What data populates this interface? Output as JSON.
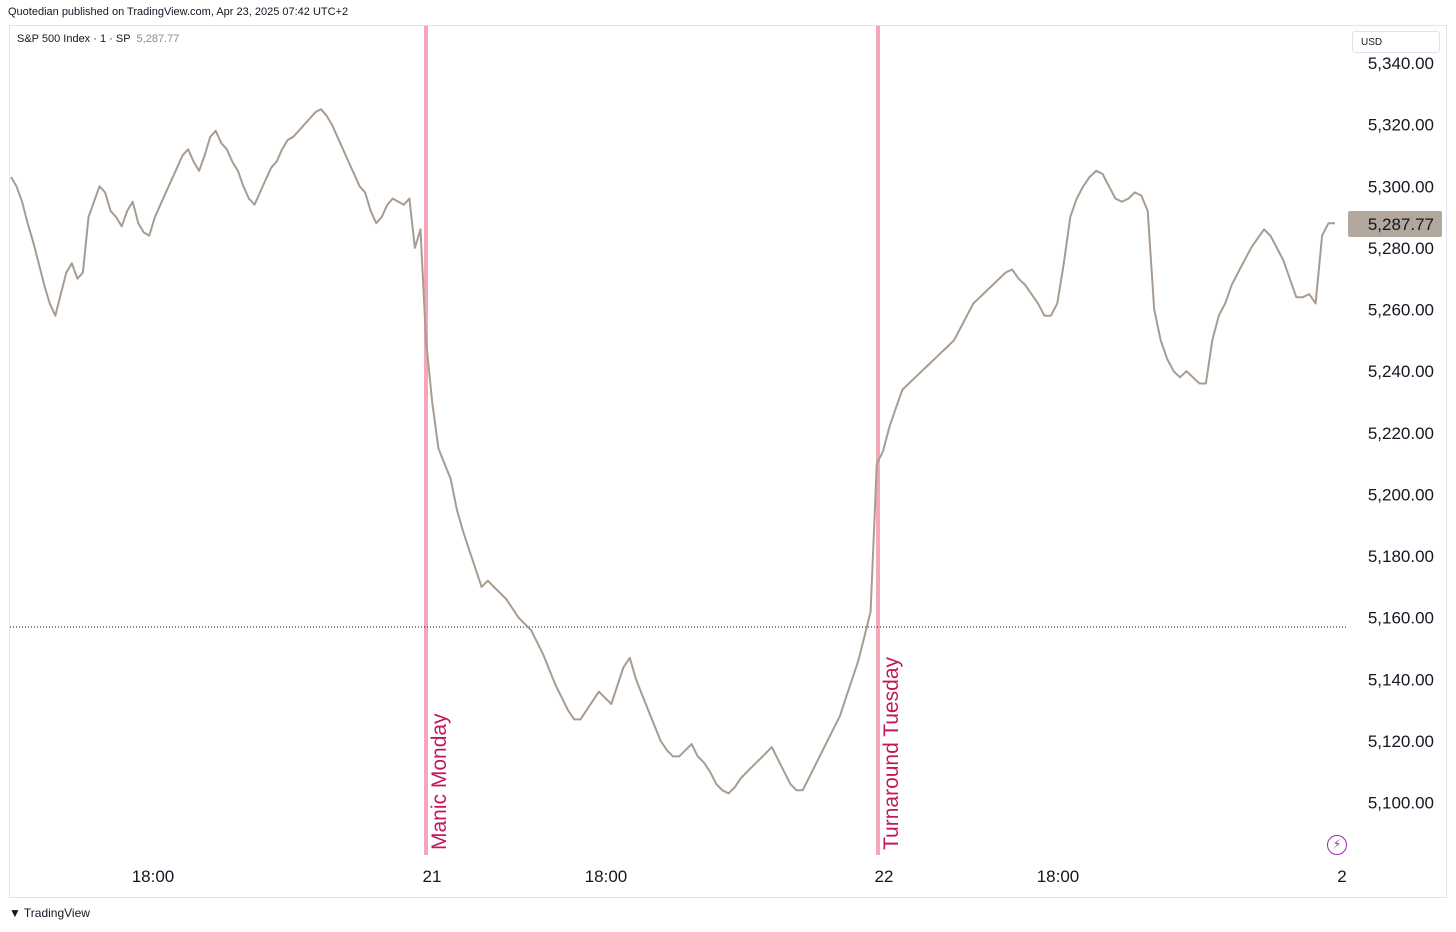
{
  "header": {
    "publisher_text": "Quotedian published on TradingView.com, Apr 23, 2025 07:42 UTC+2"
  },
  "legend": {
    "symbol": "S&P 500 Index · 1 · SP",
    "last_value": "5,287.77"
  },
  "currency_button": "USD",
  "footer": {
    "logo_icon": "tradingview-logo-icon",
    "brand": "TradingView"
  },
  "icons": {
    "bolt": "lightning-bolt-icon"
  },
  "colors": {
    "price_line": "#a89c91",
    "annotation_line": "#f4a7b9",
    "annotation_text": "#c2185b",
    "last_price_badge": "#b2a79c"
  },
  "chart_data": {
    "type": "line",
    "title": "S&P 500 Index · 1 · SP",
    "xlabel": "",
    "ylabel": "",
    "x_ticks": [
      "18:00",
      "21",
      "18:00",
      "22",
      "18:00",
      "2"
    ],
    "y_ticks": [
      "5,100.00",
      "5,120.00",
      "5,140.00",
      "5,160.00",
      "5,180.00",
      "5,200.00",
      "5,220.00",
      "5,240.00",
      "5,260.00",
      "5,280.00",
      "5,300.00",
      "5,320.00",
      "5,340.00"
    ],
    "ylim": [
      5083,
      5352
    ],
    "reference_line": 5157,
    "last_value": 5287.77,
    "last_value_label": "5,287.77",
    "annotations": [
      {
        "label": "Manic Monday",
        "at_tick": "21"
      },
      {
        "label": "Turnaround Tuesday",
        "at_tick": "22"
      }
    ],
    "series": [
      {
        "values": [
          5303,
          5300,
          5295,
          5288,
          5282,
          5275,
          5268,
          5262,
          5258,
          5265,
          5272,
          5275,
          5270,
          5272,
          5290,
          5295,
          5300,
          5298,
          5292,
          5290,
          5287,
          5292,
          5295,
          5288,
          5285,
          5284,
          5290,
          5294,
          5298,
          5302,
          5306,
          5310,
          5312,
          5308,
          5305,
          5310,
          5316,
          5318,
          5314,
          5312,
          5308,
          5305,
          5300,
          5296,
          5294,
          5298,
          5302,
          5306,
          5308,
          5312,
          5315,
          5316,
          5318,
          5320,
          5322,
          5324,
          5325,
          5323,
          5320,
          5316,
          5312,
          5308,
          5304,
          5300,
          5298,
          5292,
          5288,
          5290,
          5294,
          5296,
          5295,
          5294,
          5296,
          5280,
          5286,
          5250,
          5230,
          5215,
          5210,
          5205,
          5195,
          5188,
          5182,
          5176,
          5170,
          5172,
          5170,
          5168,
          5166,
          5163,
          5160,
          5158,
          5156,
          5152,
          5148,
          5143,
          5138,
          5134,
          5130,
          5127,
          5127,
          5130,
          5133,
          5136,
          5134,
          5132,
          5138,
          5144,
          5147,
          5140,
          5135,
          5130,
          5125,
          5120,
          5117,
          5115,
          5115,
          5117,
          5119,
          5115,
          5113,
          5110,
          5106,
          5104,
          5103,
          5105,
          5108,
          5110,
          5112,
          5114,
          5116,
          5118,
          5114,
          5110,
          5106,
          5104,
          5104,
          5108,
          5112,
          5116,
          5120,
          5124,
          5128,
          5134,
          5140,
          5146,
          5154,
          5162,
          5210,
          5214,
          5222,
          5228,
          5234,
          5236,
          5238,
          5240,
          5242,
          5244,
          5246,
          5248,
          5250,
          5254,
          5258,
          5262,
          5264,
          5266,
          5268,
          5270,
          5272,
          5273,
          5270,
          5268,
          5265,
          5262,
          5258,
          5258,
          5262,
          5275,
          5290,
          5296,
          5300,
          5303,
          5305,
          5304,
          5300,
          5296,
          5295,
          5296,
          5298,
          5297,
          5292,
          5260,
          5250,
          5244,
          5240,
          5238,
          5240,
          5238,
          5236,
          5236,
          5250,
          5258,
          5262,
          5268,
          5272,
          5276,
          5280,
          5283,
          5286,
          5284,
          5280,
          5276,
          5270,
          5264,
          5264,
          5265,
          5262,
          5284,
          5288,
          5288
        ]
      }
    ]
  }
}
